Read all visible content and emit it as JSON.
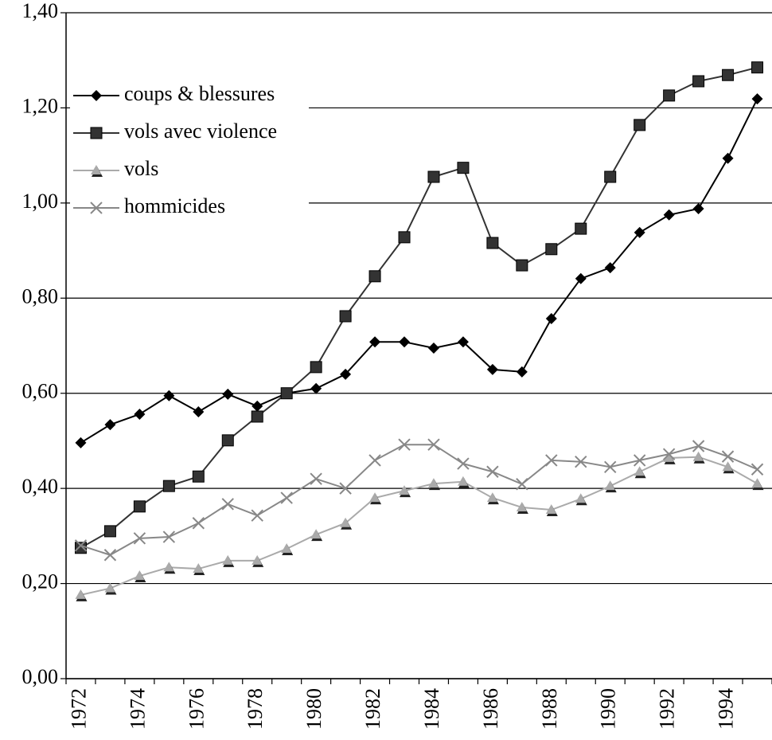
{
  "chart_data": {
    "type": "line",
    "categories": [
      "1972",
      null,
      "1974",
      null,
      "1976",
      null,
      "1978",
      null,
      "1980",
      null,
      "1982",
      null,
      "1984",
      null,
      "1986",
      null,
      "1988",
      null,
      "1990",
      null,
      "1992",
      null,
      "1994",
      null
    ],
    "series": [
      {
        "name": "coups & blessures",
        "color": "#000000",
        "marker": "diamond",
        "values": [
          0.496,
          0.534,
          0.556,
          0.595,
          0.561,
          0.598,
          0.573,
          0.6,
          0.61,
          0.64,
          0.708,
          0.708,
          0.695,
          0.708,
          0.65,
          0.645,
          0.757,
          0.841,
          0.864,
          0.938,
          0.975,
          0.988,
          1.094,
          1.219
        ]
      },
      {
        "name": "vols avec violence",
        "color": "#333333",
        "marker": "square",
        "values": [
          0.275,
          0.31,
          0.362,
          0.405,
          0.425,
          0.501,
          0.551,
          0.6,
          0.655,
          0.762,
          0.846,
          0.928,
          1.055,
          1.074,
          0.916,
          0.869,
          0.903,
          0.946,
          1.055,
          1.164,
          1.226,
          1.256,
          1.269,
          1.285
        ]
      },
      {
        "name": "vols",
        "color": "#aaaaaa",
        "marker": "triangle",
        "values": [
          0.176,
          0.19,
          0.216,
          0.234,
          0.231,
          0.248,
          0.248,
          0.273,
          0.303,
          0.327,
          0.38,
          0.395,
          0.41,
          0.414,
          0.38,
          0.36,
          0.355,
          0.378,
          0.405,
          0.435,
          0.464,
          0.466,
          0.445,
          0.41
        ]
      },
      {
        "name": "hommicides",
        "color": "#888888",
        "marker": "x",
        "values": [
          0.28,
          0.26,
          0.295,
          0.298,
          0.327,
          0.367,
          0.343,
          0.38,
          0.42,
          0.4,
          0.459,
          0.492,
          0.492,
          0.452,
          0.435,
          0.409,
          0.459,
          0.456,
          0.445,
          0.459,
          0.472,
          0.489,
          0.467,
          0.44
        ]
      }
    ],
    "ylim": [
      0,
      1.4
    ],
    "yticks": [
      {
        "value": 0,
        "label": "0,00"
      },
      {
        "value": 0.2,
        "label": "0,20"
      },
      {
        "value": 0.4,
        "label": "0,40"
      },
      {
        "value": 0.6,
        "label": "0,60"
      },
      {
        "value": 0.8,
        "label": "0,80"
      },
      {
        "value": 1.0,
        "label": "1,00"
      },
      {
        "value": 1.2,
        "label": "1,20"
      },
      {
        "value": 1.4,
        "label": "1,40"
      }
    ],
    "grid": true,
    "legend": "upper left"
  }
}
